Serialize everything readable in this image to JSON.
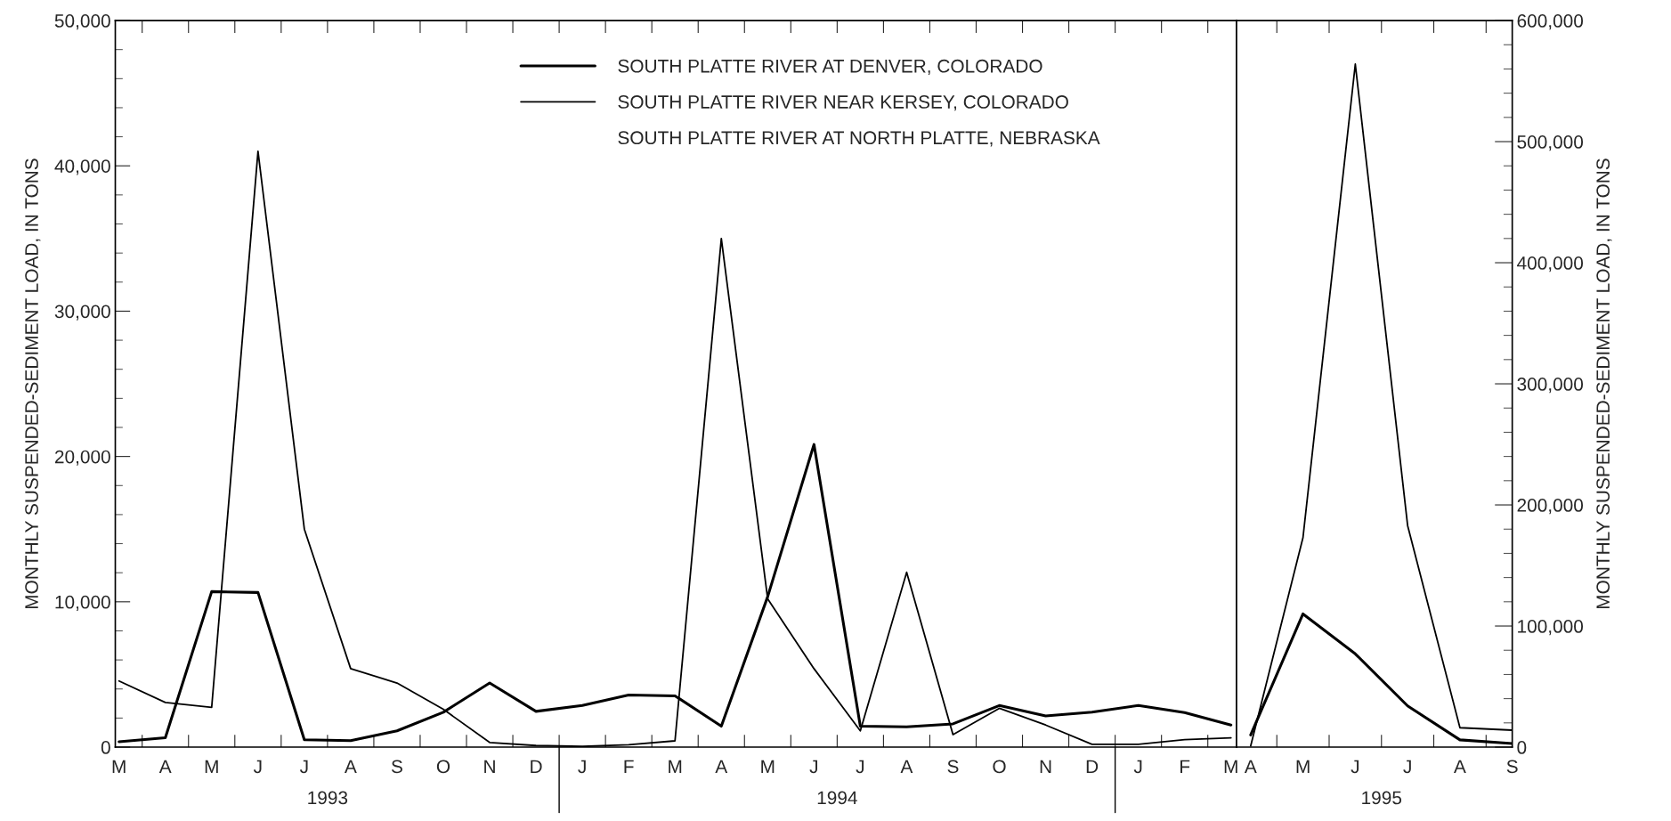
{
  "chart_data": [
    {
      "type": "line",
      "ylabel": "MONTHLY SUSPENDED-SEDIMENT LOAD, IN TONS",
      "categories": [
        "M",
        "A",
        "M",
        "J",
        "J",
        "A",
        "S",
        "O",
        "N",
        "D",
        "J",
        "F",
        "M",
        "A",
        "M",
        "J",
        "J",
        "A",
        "S",
        "O",
        "N",
        "D",
        "J",
        "F",
        "M"
      ],
      "series": [
        {
          "name": "SOUTH PLATTE RIVER AT DENVER, COLORADO",
          "color": "#000000",
          "values": [
            370,
            640,
            10700,
            10640,
            510,
            450,
            1120,
            2400,
            4410,
            2460,
            2860,
            3580,
            3530,
            1440,
            10350,
            20830,
            1440,
            1390,
            1600,
            2860,
            2140,
            2410,
            2860,
            2380,
            1520
          ]
        },
        {
          "name": "SOUTH PLATTE RIVER NEAR KERSEY, COLORADO",
          "color": "#000000",
          "values": [
            4550,
            3070,
            2730,
            41000,
            15000,
            5400,
            4410,
            2600,
            320,
            110,
            50,
            160,
            430,
            35000,
            10210,
            5400,
            1120,
            12030,
            860,
            2670,
            1520,
            190,
            190,
            510,
            640
          ]
        }
      ],
      "ylim": [
        0,
        50000
      ],
      "yticks": [
        0,
        {
          "value": 10000,
          "label": "10,000"
        },
        {
          "value": 20000,
          "label": "20,000"
        },
        {
          "value": 30000,
          "label": "30,000"
        },
        {
          "value": 40000,
          "label": "40,000"
        },
        {
          "value": 50000,
          "label": "50,000"
        }
      ],
      "annotations": [
        "SOUTH PLATTE RIVER AT NORTH PLATTE, NEBRASKA",
        "1993",
        "1994"
      ],
      "legend": "top",
      "line_style": "solid",
      "marker": "none",
      "grid": false
    },
    {
      "type": "line",
      "y2label": "MONTHLY SUSPENDED-SEDIMENT LOAD, IN TONS",
      "categories": [
        "A",
        "M",
        "J",
        "J",
        "A",
        "S"
      ],
      "series": [
        {
          "color": "#000000",
          "axis": "y2",
          "values": [
            10000,
            110000,
            77000,
            34000,
            6000,
            3000
          ]
        },
        {
          "color": "#000000",
          "axis": "y2",
          "values": [
            1000,
            173000,
            564000,
            183000,
            16000,
            14000
          ]
        }
      ],
      "y2lim": [
        0,
        600000
      ],
      "y2ticks": [
        0,
        {
          "value": 100000,
          "label": "100,000"
        },
        {
          "value": 200000,
          "label": "200,000"
        },
        {
          "value": 300000,
          "label": "300,000"
        },
        {
          "value": 400000,
          "label": "400,000"
        },
        {
          "value": 500000,
          "label": "500,000"
        },
        {
          "value": 600000,
          "label": "600,000"
        }
      ],
      "annotations": [
        "1995"
      ],
      "line_style": "solid",
      "marker": "none",
      "grid": false
    }
  ]
}
